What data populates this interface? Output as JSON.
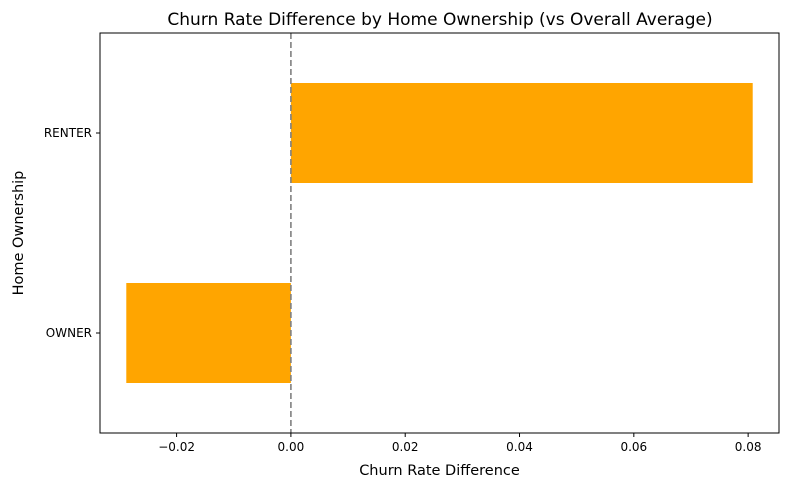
{
  "chart_data": {
    "type": "bar",
    "orientation": "horizontal",
    "title": "Churn Rate Difference by Home Ownership (vs Overall Average)",
    "xlabel": "Churn Rate Difference",
    "ylabel": "Home Ownership",
    "categories": [
      "OWNER",
      "RENTER"
    ],
    "values": [
      -0.0288,
      0.0808
    ],
    "xlim": [
      -0.0334,
      0.0854
    ],
    "xticks": [
      -0.02,
      0.0,
      0.02,
      0.04,
      0.06,
      0.08
    ],
    "xtick_labels": [
      "−0.02",
      "0.00",
      "0.02",
      "0.04",
      "0.06",
      "0.08"
    ],
    "reference_line": {
      "x": 0,
      "style": "dashed"
    },
    "grid": false,
    "bar_color": "#ffa500",
    "reference_line_color": "#808080"
  }
}
